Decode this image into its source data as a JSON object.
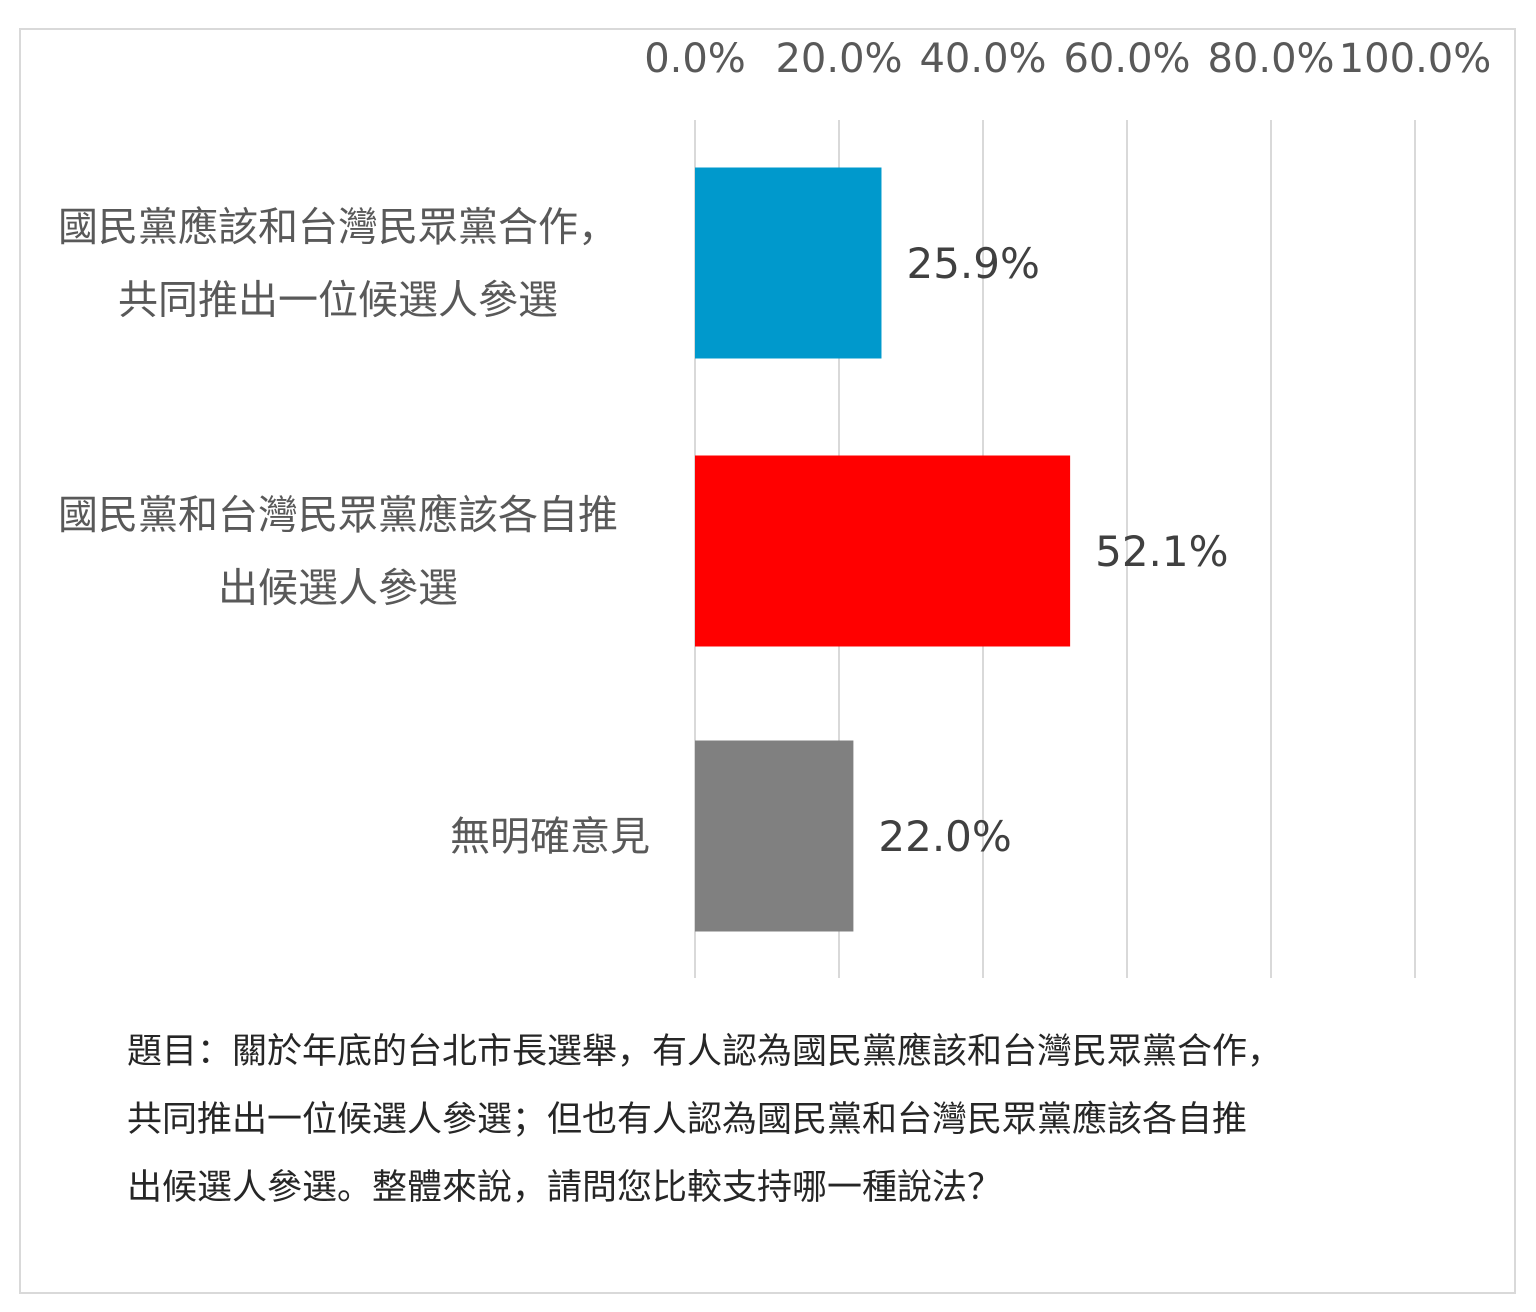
{
  "chart_data": {
    "type": "bar",
    "orientation": "horizontal",
    "categories": [
      [
        "國民黨應該和台灣民眾黨合作，",
        "共同推出一位候選人參選"
      ],
      [
        "國民黨和台灣民眾黨應該各自推",
        "出候選人參選"
      ],
      [
        "無明確意見"
      ]
    ],
    "values": [
      25.9,
      52.1,
      22.0
    ],
    "data_labels": [
      "25.9%",
      "52.1%",
      "22.0%"
    ],
    "colors": [
      "#0099cc",
      "#ff0000",
      "#808080"
    ],
    "xlim": [
      0,
      100
    ],
    "x_ticks": [
      0,
      20,
      40,
      60,
      80,
      100
    ],
    "x_tick_labels": [
      "0.0%",
      "20.0%",
      "40.0%",
      "60.0%",
      "80.0%",
      "100.0%"
    ],
    "x_axis_position": "top",
    "grid": true,
    "legend": "none"
  },
  "footnote": {
    "lines": [
      "題目：關於年底的台北市長選舉，有人認為國民黨應該和台灣民眾黨合作，",
      "共同推出一位候選人參選；但也有人認為國民黨和台灣民眾黨應該各自推",
      "出候選人參選。整體來說，請問您比較支持哪一種說法？"
    ]
  }
}
